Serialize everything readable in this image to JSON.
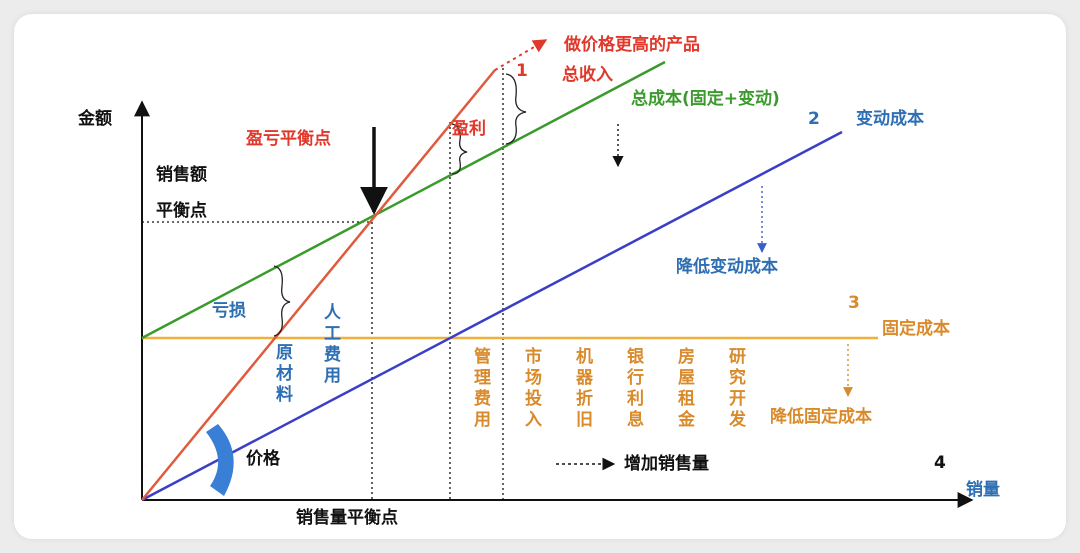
{
  "axes": {
    "y_label": "金额",
    "x_label": "销量",
    "y_tick_sales": "销售额",
    "y_tick_break_even": "平衡点",
    "x_tick_break_even": "销售量平衡点"
  },
  "lines": {
    "total_revenue": {
      "label": "总收入",
      "color": "#e05a3c"
    },
    "higher_price": {
      "label": "做价格更高的产品",
      "color": "#e0392b"
    },
    "total_cost": {
      "label": "总成本(固定+变动)",
      "color": "#3a9a2c"
    },
    "variable_cost": {
      "label": "变动成本",
      "color": "#3b5fc8"
    },
    "fixed_cost": {
      "label": "固定成本",
      "color": "#f0b03c"
    }
  },
  "markers": {
    "m1": "1",
    "m2": "2",
    "m3": "3",
    "m4": "4"
  },
  "annotations": {
    "break_even_point": "盈亏平衡点",
    "profit": "盈利",
    "loss": "亏损",
    "price": "价格",
    "reduce_variable_cost": "降低变动成本",
    "reduce_fixed_cost": "降低固定成本",
    "increase_sales": "增加销售量"
  },
  "variable_cost_items": [
    "原材料",
    "人工费用"
  ],
  "fixed_cost_items": [
    "管理费用",
    "市场投入",
    "机器折旧",
    "银行利息",
    "房屋租金",
    "研究开发"
  ],
  "colors": {
    "red": "#e0392b",
    "blue": "#2e6fb3",
    "orange": "#d98a2b",
    "black": "#111111",
    "dashed_arrow": "#c0392b"
  }
}
